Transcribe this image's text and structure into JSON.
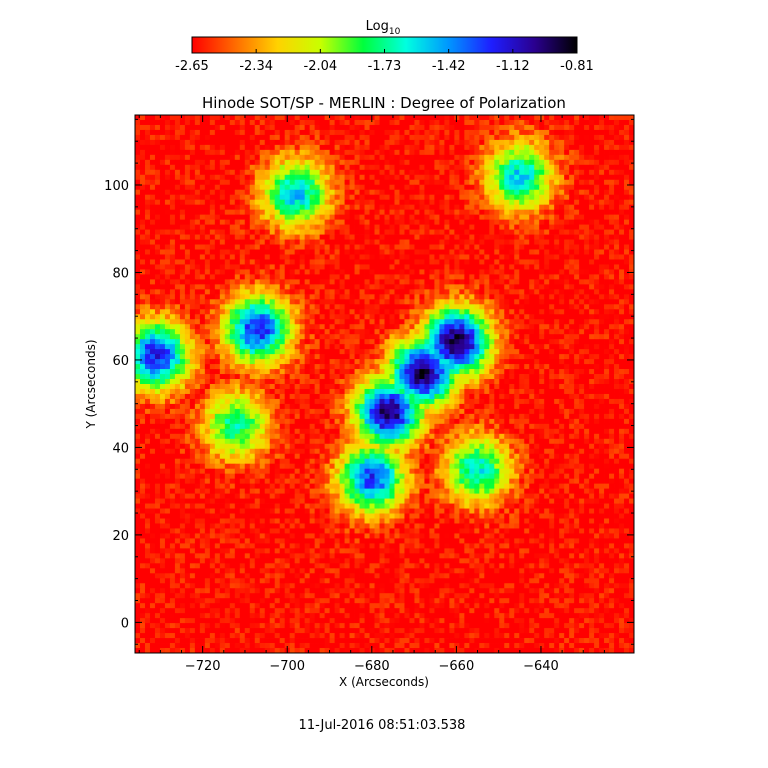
{
  "colorbar": {
    "label": "Log",
    "label_sub": "10",
    "ticks": [
      "-2.65",
      "-2.34",
      "-2.04",
      "-1.73",
      "-1.42",
      "-1.12",
      "-0.81"
    ],
    "range": [
      -2.65,
      -0.81
    ],
    "colors": [
      "#ff0000",
      "#ff6a00",
      "#ffd200",
      "#c8ff00",
      "#00ff3c",
      "#00ffe0",
      "#0096ff",
      "#1e1eff",
      "#2a0090",
      "#000000"
    ]
  },
  "chart_data": {
    "type": "heatmap",
    "title": "Hinode SOT/SP - MERLIN : Degree of Polarization",
    "xlabel": "X (Arcseconds)",
    "ylabel": "Y (Arcseconds)",
    "xlim": [
      -736,
      -618
    ],
    "ylim": [
      -7,
      116
    ],
    "xticks": [
      -720,
      -700,
      -680,
      -660,
      -640
    ],
    "yticks": [
      0,
      20,
      40,
      60,
      80,
      100
    ],
    "value_range": [
      -2.65,
      -0.81
    ],
    "grid": false,
    "features": [
      {
        "x": -668,
        "y": 57,
        "value": -0.9
      },
      {
        "x": -660,
        "y": 64,
        "value": -0.85
      },
      {
        "x": -676,
        "y": 48,
        "value": -0.95
      },
      {
        "x": -731,
        "y": 61,
        "value": -1.15
      },
      {
        "x": -707,
        "y": 67,
        "value": -1.2
      },
      {
        "x": -680,
        "y": 33,
        "value": -1.25
      },
      {
        "x": -712,
        "y": 45,
        "value": -1.7
      },
      {
        "x": -698,
        "y": 98,
        "value": -1.5
      },
      {
        "x": -645,
        "y": 102,
        "value": -1.55
      },
      {
        "x": -655,
        "y": 35,
        "value": -1.6
      }
    ]
  },
  "timestamp": "11-Jul-2016 08:51:03.538"
}
